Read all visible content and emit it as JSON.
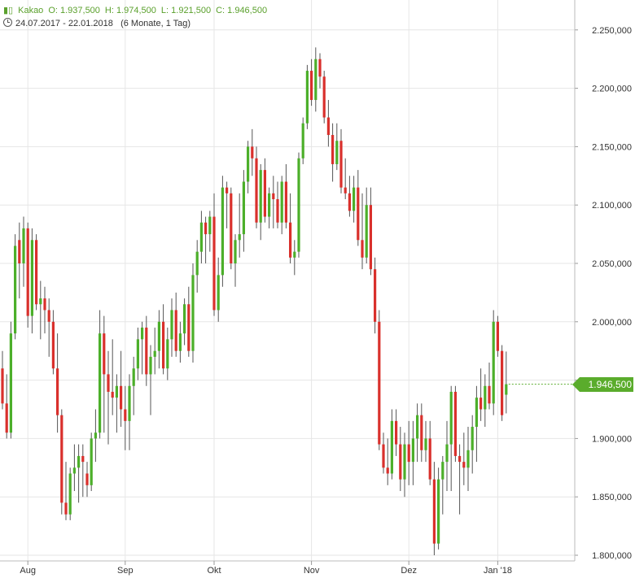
{
  "legend": {
    "name": "Kakao",
    "open": "O: 1.937,500",
    "high": "H: 1.974,500",
    "low": "L: 1.921,500",
    "close": "C: 1.946,500",
    "range": "24.07.2017 - 22.01.2018",
    "period": "(6 Monate, 1 Tag)",
    "icon": "candlestick-icon"
  },
  "last_price_label": "1.946,500",
  "colors": {
    "up": "#4caf2a",
    "down": "#d9302c",
    "grid": "#e6e6e6",
    "tag": "#5aac2c"
  },
  "chart_data": {
    "type": "candlestick",
    "grid": true,
    "y_axis_position": "right",
    "ylim": [
      1790,
      2260
    ],
    "y_ticks": [
      {
        "value": 2250,
        "label": "2.250,000"
      },
      {
        "value": 2200,
        "label": "2.200,000"
      },
      {
        "value": 2150,
        "label": "2.150,000"
      },
      {
        "value": 2100,
        "label": "2.100,000"
      },
      {
        "value": 2050,
        "label": "2.050,000"
      },
      {
        "value": 2000,
        "label": "2.000,000"
      },
      {
        "value": 1950,
        "label": "1.950,000"
      },
      {
        "value": 1900,
        "label": "1.900,000"
      },
      {
        "value": 1850,
        "label": "1.850,000"
      },
      {
        "value": 1800,
        "label": "1.800,000"
      }
    ],
    "x_ticks": [
      {
        "index": 6,
        "label": "Aug"
      },
      {
        "index": 29,
        "label": "Sep"
      },
      {
        "index": 50,
        "label": "Okt"
      },
      {
        "index": 73,
        "label": "Nov"
      },
      {
        "index": 96,
        "label": "Dez"
      },
      {
        "index": 117,
        "label": "Jan '18"
      }
    ],
    "candles": [
      [
        1960,
        1975,
        1925,
        1930
      ],
      [
        1930,
        1955,
        1900,
        1905
      ],
      [
        1905,
        2000,
        1900,
        1990
      ],
      [
        1990,
        2075,
        1985,
        2065
      ],
      [
        2070,
        2085,
        2020,
        2050
      ],
      [
        2050,
        2090,
        2030,
        2080
      ],
      [
        2080,
        2085,
        1995,
        2005
      ],
      [
        2005,
        2080,
        1990,
        2070
      ],
      [
        2070,
        2075,
        2010,
        2015
      ],
      [
        2015,
        2035,
        1985,
        2020
      ],
      [
        2020,
        2030,
        1990,
        2010
      ],
      [
        2010,
        2020,
        1970,
        2000
      ],
      [
        2000,
        2010,
        1955,
        1960
      ],
      [
        1960,
        1990,
        1905,
        1920
      ],
      [
        1920,
        1925,
        1835,
        1845
      ],
      [
        1845,
        1880,
        1830,
        1835
      ],
      [
        1835,
        1875,
        1830,
        1870
      ],
      [
        1870,
        1895,
        1855,
        1875
      ],
      [
        1875,
        1895,
        1845,
        1885
      ],
      [
        1885,
        1895,
        1850,
        1880
      ],
      [
        1870,
        1880,
        1850,
        1860
      ],
      [
        1860,
        1905,
        1855,
        1900
      ],
      [
        1900,
        1925,
        1880,
        1905
      ],
      [
        1905,
        2010,
        1900,
        1990
      ],
      [
        1990,
        2005,
        1905,
        1955
      ],
      [
        1955,
        1975,
        1895,
        1940
      ],
      [
        1940,
        1985,
        1920,
        1935
      ],
      [
        1935,
        1955,
        1905,
        1945
      ],
      [
        1945,
        1975,
        1910,
        1925
      ],
      [
        1925,
        1945,
        1890,
        1915
      ],
      [
        1915,
        1955,
        1890,
        1945
      ],
      [
        1945,
        1970,
        1920,
        1960
      ],
      [
        1960,
        1995,
        1950,
        1985
      ],
      [
        1985,
        2000,
        1955,
        1995
      ],
      [
        1995,
        2005,
        1945,
        1955
      ],
      [
        1955,
        1980,
        1920,
        1970
      ],
      [
        1970,
        1995,
        1955,
        1975
      ],
      [
        1975,
        2010,
        1960,
        2000
      ],
      [
        2000,
        2015,
        1955,
        1960
      ],
      [
        1960,
        1995,
        1950,
        1985
      ],
      [
        1985,
        2020,
        1970,
        2010
      ],
      [
        2010,
        2025,
        1970,
        1975
      ],
      [
        1975,
        2000,
        1965,
        1990
      ],
      [
        1990,
        2020,
        1980,
        2015
      ],
      [
        2015,
        2030,
        1970,
        1975
      ],
      [
        1975,
        2050,
        1965,
        2040
      ],
      [
        2040,
        2070,
        2025,
        2060
      ],
      [
        2060,
        2095,
        2050,
        2085
      ],
      [
        2085,
        2090,
        2050,
        2075
      ],
      [
        2075,
        2095,
        2060,
        2090
      ],
      [
        2090,
        2110,
        2005,
        2010
      ],
      [
        2010,
        2055,
        2000,
        2040
      ],
      [
        2040,
        2125,
        2030,
        2115
      ],
      [
        2115,
        2120,
        2080,
        2110
      ],
      [
        2110,
        2115,
        2045,
        2050
      ],
      [
        2050,
        2075,
        2030,
        2070
      ],
      [
        2070,
        2110,
        2055,
        2075
      ],
      [
        2075,
        2130,
        2060,
        2120
      ],
      [
        2120,
        2155,
        2110,
        2150
      ],
      [
        2150,
        2165,
        2125,
        2140
      ],
      [
        2140,
        2150,
        2080,
        2085
      ],
      [
        2085,
        2135,
        2070,
        2130
      ],
      [
        2130,
        2140,
        2085,
        2090
      ],
      [
        2090,
        2115,
        2080,
        2110
      ],
      [
        2110,
        2125,
        2080,
        2105
      ],
      [
        2105,
        2120,
        2080,
        2085
      ],
      [
        2085,
        2125,
        2075,
        2120
      ],
      [
        2120,
        2135,
        2080,
        2085
      ],
      [
        2085,
        2110,
        2050,
        2055
      ],
      [
        2055,
        2070,
        2040,
        2060
      ],
      [
        2060,
        2145,
        2055,
        2140
      ],
      [
        2140,
        2175,
        2135,
        2170
      ],
      [
        2170,
        2220,
        2165,
        2215
      ],
      [
        2215,
        2225,
        2185,
        2190
      ],
      [
        2190,
        2235,
        2180,
        2225
      ],
      [
        2225,
        2230,
        2200,
        2210
      ],
      [
        2210,
        2215,
        2170,
        2175
      ],
      [
        2175,
        2190,
        2150,
        2160
      ],
      [
        2160,
        2170,
        2120,
        2135
      ],
      [
        2135,
        2170,
        2130,
        2155
      ],
      [
        2155,
        2165,
        2110,
        2115
      ],
      [
        2115,
        2140,
        2105,
        2110
      ],
      [
        2110,
        2125,
        2090,
        2095
      ],
      [
        2095,
        2125,
        2085,
        2115
      ],
      [
        2115,
        2130,
        2065,
        2070
      ],
      [
        2070,
        2110,
        2045,
        2055
      ],
      [
        2055,
        2115,
        2050,
        2100
      ],
      [
        2100,
        2115,
        2040,
        2045
      ],
      [
        2045,
        2055,
        1990,
        2000
      ],
      [
        2000,
        2010,
        1890,
        1895
      ],
      [
        1895,
        1905,
        1870,
        1875
      ],
      [
        1875,
        1900,
        1860,
        1870
      ],
      [
        1870,
        1925,
        1865,
        1915
      ],
      [
        1915,
        1925,
        1885,
        1895
      ],
      [
        1895,
        1910,
        1855,
        1865
      ],
      [
        1865,
        1905,
        1850,
        1895
      ],
      [
        1895,
        1915,
        1860,
        1880
      ],
      [
        1880,
        1915,
        1860,
        1900
      ],
      [
        1900,
        1930,
        1880,
        1920
      ],
      [
        1920,
        1930,
        1880,
        1890
      ],
      [
        1890,
        1915,
        1880,
        1900
      ],
      [
        1900,
        1915,
        1860,
        1865
      ],
      [
        1865,
        1880,
        1800,
        1810
      ],
      [
        1810,
        1875,
        1805,
        1865
      ],
      [
        1865,
        1885,
        1835,
        1880
      ],
      [
        1880,
        1915,
        1855,
        1895
      ],
      [
        1895,
        1945,
        1855,
        1940
      ],
      [
        1940,
        1945,
        1880,
        1885
      ],
      [
        1885,
        1895,
        1835,
        1880
      ],
      [
        1880,
        1905,
        1860,
        1875
      ],
      [
        1875,
        1910,
        1855,
        1890
      ],
      [
        1890,
        1920,
        1870,
        1910
      ],
      [
        1910,
        1945,
        1880,
        1935
      ],
      [
        1935,
        1960,
        1915,
        1925
      ],
      [
        1925,
        1955,
        1910,
        1945
      ],
      [
        1945,
        1965,
        1925,
        1930
      ],
      [
        1930,
        2010,
        1920,
        2000
      ],
      [
        2000,
        2005,
        1970,
        1975
      ],
      [
        1975,
        1980,
        1915,
        1920
      ],
      [
        1937.5,
        1974.5,
        1921.5,
        1946.5
      ]
    ]
  }
}
